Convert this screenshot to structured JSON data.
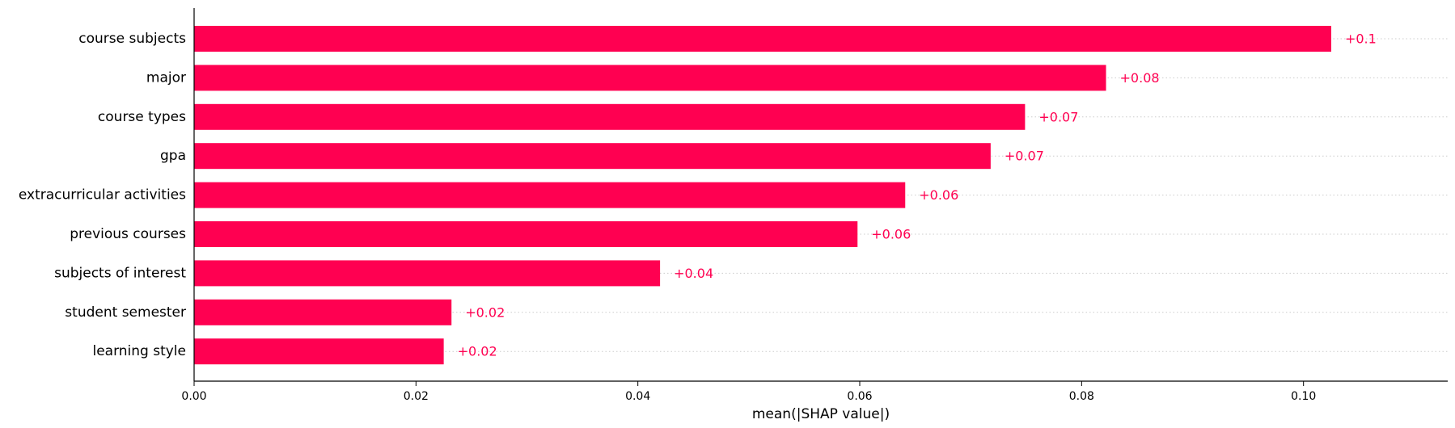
{
  "chart_data": {
    "type": "bar",
    "orientation": "horizontal",
    "categories": [
      "course subjects",
      "major",
      "course types",
      "gpa",
      "extracurricular activities",
      "previous courses",
      "subjects of interest",
      "student semester",
      "learning style"
    ],
    "values": [
      0.1025,
      0.0822,
      0.0749,
      0.0718,
      0.0641,
      0.0598,
      0.042,
      0.0232,
      0.0225
    ],
    "value_labels": [
      "+0.1",
      "+0.08",
      "+0.07",
      "+0.07",
      "+0.06",
      "+0.06",
      "+0.04",
      "+0.02",
      "+0.02"
    ],
    "xlabel": "mean(|SHAP value|)",
    "xlim": [
      0,
      0.113
    ],
    "xticks": [
      0,
      0.02,
      0.04,
      0.06,
      0.08,
      0.1
    ],
    "xtick_labels": [
      "0.00",
      "0.02",
      "0.04",
      "0.06",
      "0.08",
      "0.10"
    ],
    "grid": "horizontal dotted",
    "colors": {
      "bar": "#ff0051",
      "value_label": "#ff0051",
      "grid": "#cccccc",
      "axis": "#000000"
    }
  }
}
